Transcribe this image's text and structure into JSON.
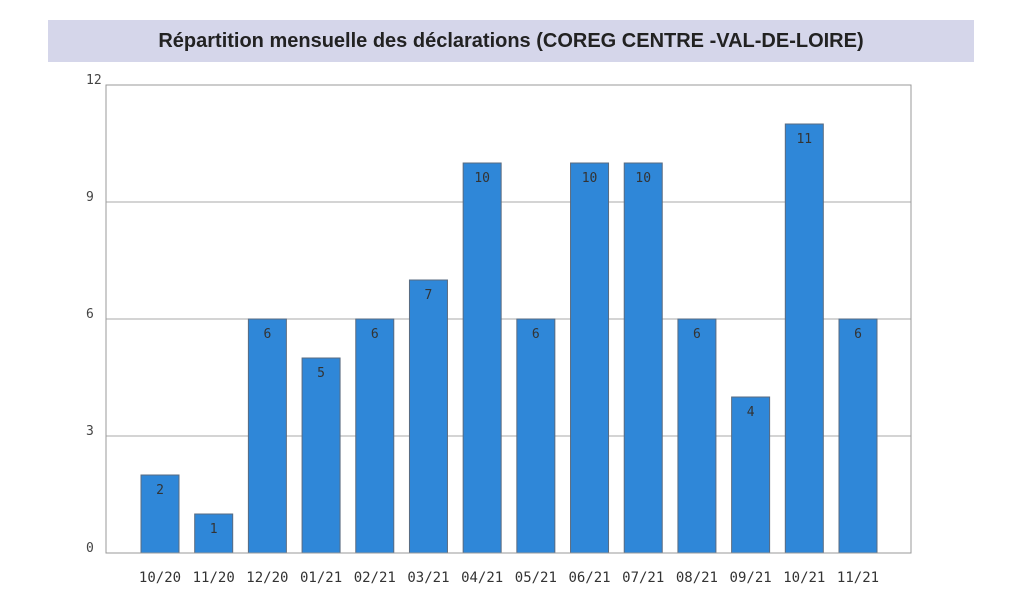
{
  "chart_data": {
    "type": "bar",
    "title": "Répartition mensuelle des déclarations (COREG CENTRE -VAL-DE-LOIRE)",
    "categories": [
      "10/20",
      "11/20",
      "12/20",
      "01/21",
      "02/21",
      "03/21",
      "04/21",
      "05/21",
      "06/21",
      "07/21",
      "08/21",
      "09/21",
      "10/21",
      "11/21"
    ],
    "values": [
      2,
      1,
      6,
      5,
      6,
      7,
      10,
      6,
      10,
      10,
      6,
      4,
      11,
      6
    ],
    "ylim": [
      0,
      12
    ],
    "yticks": [
      0,
      3,
      6,
      9,
      12
    ],
    "grid": true,
    "bar_color": "#2f87d8",
    "bar_stroke": "#5a6b80"
  }
}
